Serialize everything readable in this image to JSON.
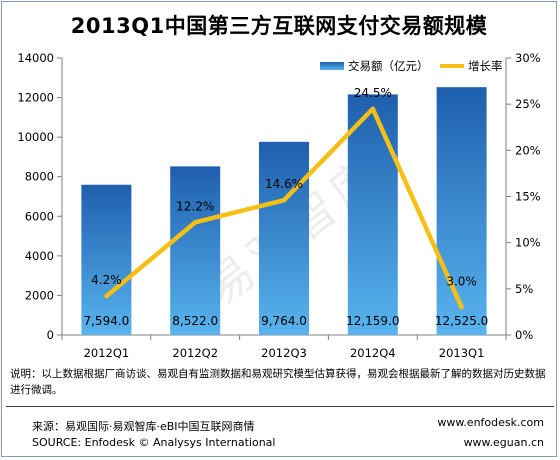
{
  "chart_data": {
    "type": "bar",
    "title": "2013Q1中国第三方互联网支付交易额规模",
    "categories": [
      "2012Q1",
      "2012Q2",
      "2012Q3",
      "2012Q4",
      "2013Q1"
    ],
    "series": [
      {
        "name": "交易额（亿元）",
        "type": "bar",
        "axis": "left",
        "values": [
          7594.0,
          8522.0,
          9764.0,
          12159.0,
          12525.0
        ],
        "labels": [
          "7,594.0",
          "8,522.0",
          "9,764.0",
          "12,159.0",
          "12,525.0"
        ]
      },
      {
        "name": "增长率",
        "type": "line",
        "axis": "right",
        "values": [
          4.2,
          12.2,
          14.6,
          24.5,
          3.0
        ],
        "labels": [
          "4.2%",
          "12.2%",
          "14.6%",
          "24.5%",
          "3.0%"
        ]
      }
    ],
    "ylim_left": [
      0,
      14000
    ],
    "yticks_left": [
      "0",
      "2000",
      "4000",
      "6000",
      "8000",
      "10000",
      "12000",
      "14000"
    ],
    "ylim_right": [
      0,
      30
    ],
    "yticks_right": [
      "0%",
      "5%",
      "10%",
      "15%",
      "20%",
      "25%",
      "30%"
    ],
    "legend_position": "top-right",
    "colors": {
      "bar_top": "#1f5fae",
      "bar_bottom": "#58b4ee",
      "line": "#f6bf16"
    }
  },
  "watermark": "易观智库",
  "note": "说明：以上数据根据厂商访谈、易观自有监测数据和易观研究模型估算获得，易观会根据最新了解的数据对历史数据进行微调。",
  "footer": {
    "source_cn": "来源：易观国际·易观智库·eBI中国互联网商情",
    "source_en": "SOURCE: Enfodesk © Analysys International",
    "url1": "www.enfodesk.com",
    "url2": "www.eguan.cn"
  }
}
